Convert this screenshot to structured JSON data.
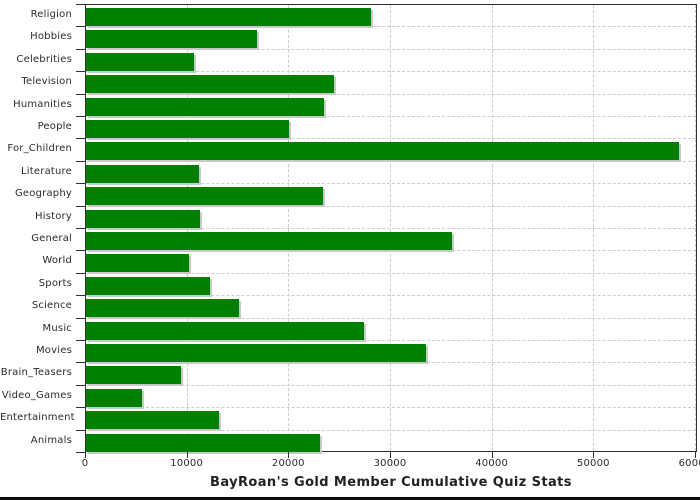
{
  "chart_data": {
    "type": "bar",
    "orientation": "horizontal",
    "title": "BayRoan's Gold Member Cumulative Quiz Stats",
    "categories": [
      "Religion",
      "Hobbies",
      "Celebrities",
      "Television",
      "Humanities",
      "People",
      "For_Children",
      "Literature",
      "Geography",
      "History",
      "General",
      "World",
      "Sports",
      "Science",
      "Music",
      "Movies",
      "Brain_Teasers",
      "Video_Games",
      "Entertainment",
      "Animals"
    ],
    "values": [
      28000,
      16800,
      10600,
      24400,
      23400,
      20000,
      58300,
      11100,
      23300,
      11200,
      36000,
      10100,
      12200,
      15000,
      27300,
      33400,
      9300,
      5500,
      13100,
      23000
    ],
    "xlim": [
      0,
      60000
    ],
    "x_ticks": [
      0,
      10000,
      20000,
      30000,
      40000,
      50000,
      60000
    ],
    "grid": "dashed",
    "legend": "none",
    "colors": {
      "bar": "#008000",
      "bar_shadow": "#c9c9c9",
      "grid": "#cccccc",
      "axis": "#2f2f2f",
      "text": "#2b2b2b",
      "background": "#ffffff",
      "bottom_strip": "#0a0a0a"
    }
  }
}
